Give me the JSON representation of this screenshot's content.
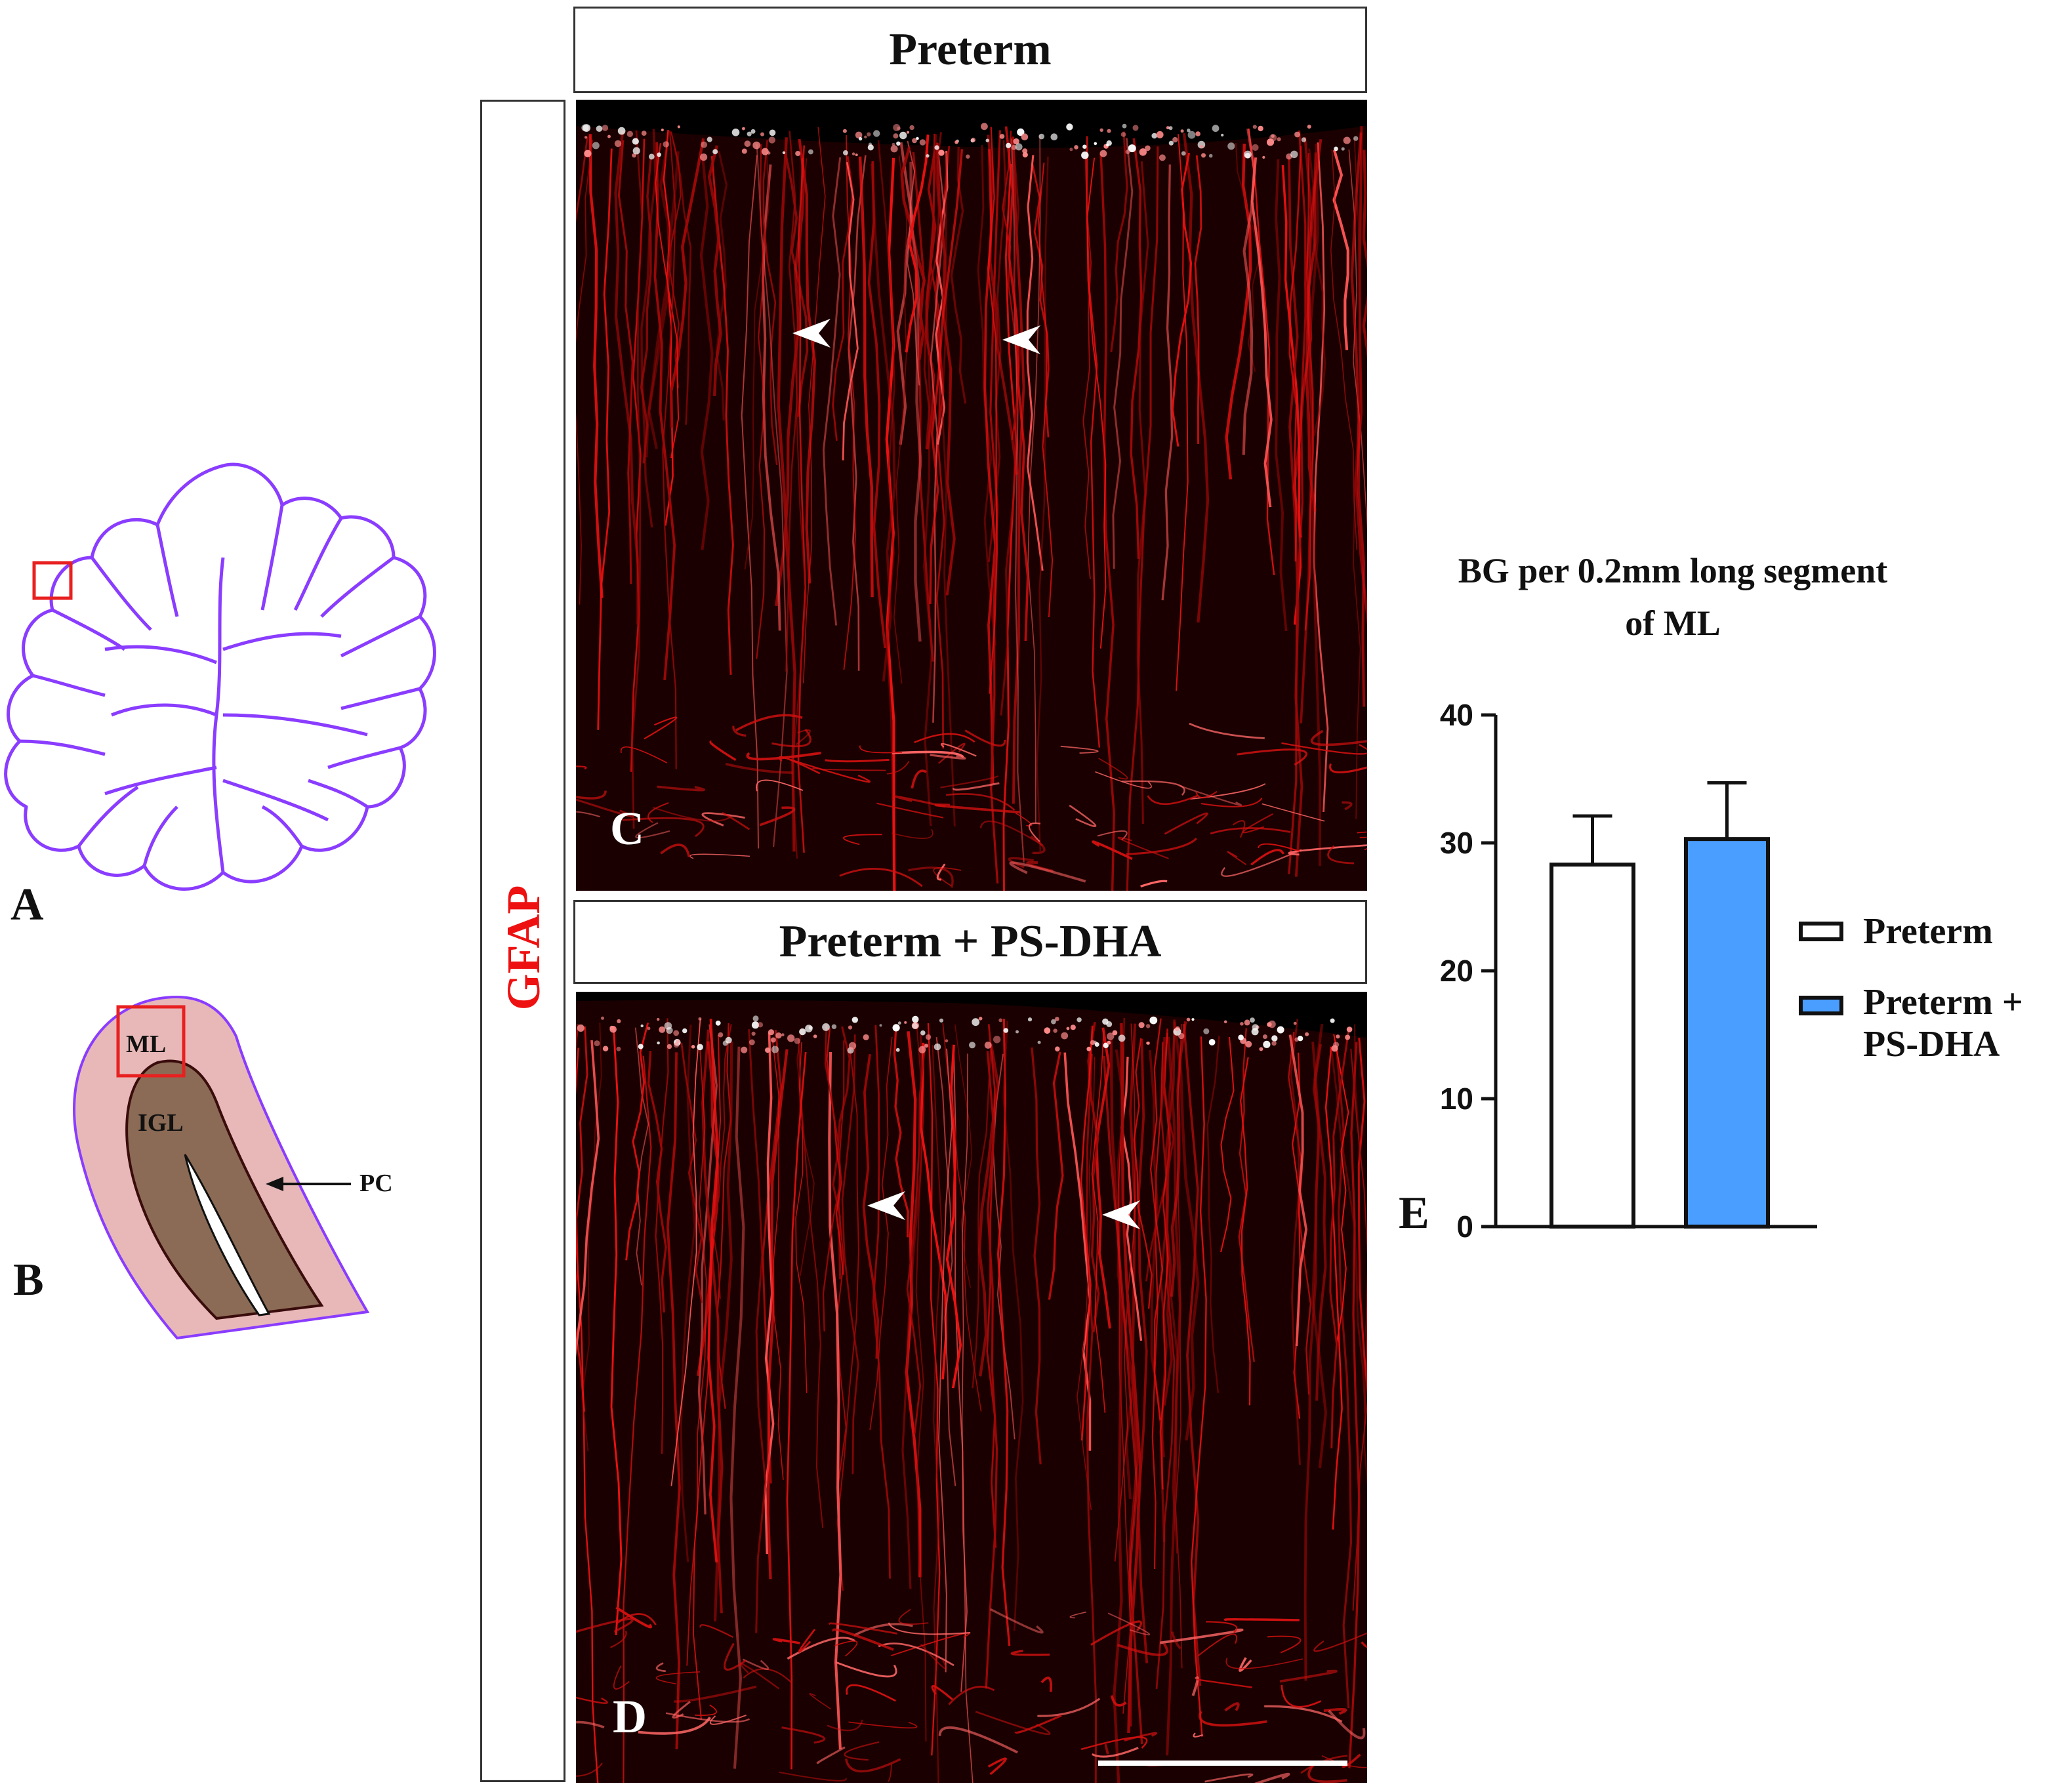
{
  "panels": {
    "A": {
      "letter": "A"
    },
    "B": {
      "letter": "B",
      "labels": {
        "ml": "ML",
        "igl": "IGL",
        "pc": "PC"
      }
    },
    "C": {
      "letter": "C",
      "title": "Preterm"
    },
    "D": {
      "letter": "D",
      "title": "Preterm + PS-DHA"
    },
    "E": {
      "letter": "E"
    }
  },
  "stain_label": "GFAP",
  "colors": {
    "lobule_outline": "#8a3cff",
    "roi_box": "#e82020",
    "ml_fill": "#e8b8b8",
    "igl_fill": "#8b6b55",
    "gfap_red": "#ee1111",
    "preterm_bar": "#ffffff",
    "psdha_bar": "#4a9eff"
  },
  "chart_data": {
    "type": "bar",
    "title": "BG per 0.2mm long segment of ML",
    "title_lines": [
      "BG per 0.2mm long segment",
      "of ML"
    ],
    "categories": [
      "Preterm",
      "Preterm + PS-DHA"
    ],
    "values": [
      28.3,
      30.3
    ],
    "errors": [
      3.8,
      4.4
    ],
    "ylim": [
      0,
      40
    ],
    "yticks": [
      0,
      10,
      20,
      30,
      40
    ],
    "legend": [
      {
        "label_lines": [
          "Preterm"
        ],
        "color": "#ffffff"
      },
      {
        "label_lines": [
          "Preterm +",
          "PS-DHA"
        ],
        "color": "#4a9eff"
      }
    ],
    "legend_position": "right",
    "grid": false
  }
}
